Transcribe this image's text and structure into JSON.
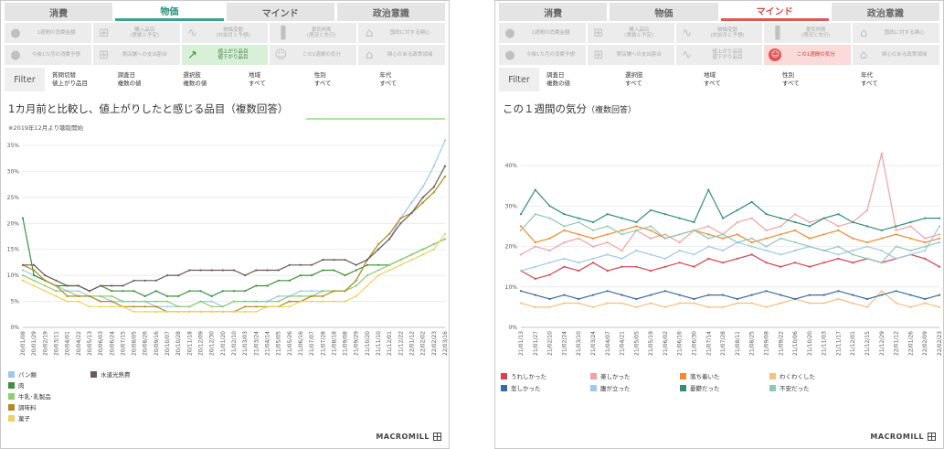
{
  "left": {
    "tabs": [
      "消費",
      "物価",
      "マインド",
      "政治意識"
    ],
    "active_tab": 1,
    "subtabs": [
      {
        "label": "1週間の消費金額",
        "icon": "money-bag-icon"
      },
      {
        "label": "購入品目\n(実績と予定)",
        "icon": "cart-icon"
      },
      {
        "label": "物価変動\n(対前月と予想)",
        "icon": "trend-icon"
      },
      {
        "label": "景気判断\n(現況と先行)",
        "icon": "bar-chart-icon"
      },
      {
        "label": "国政に対する関心",
        "icon": "parliament-icon"
      },
      {
        "label": "今後1カ月の消費予想",
        "icon": "money-bag-icon"
      },
      {
        "label": "実店舗への支出割合",
        "icon": "cart-icon"
      },
      {
        "label": "値上がり品目\n値下がり品目",
        "icon": "trend-up-icon"
      },
      {
        "label": "この1週間の気分",
        "icon": "smile-icon"
      },
      {
        "label": "関心のある政策領域",
        "icon": "parliament-icon"
      }
    ],
    "active_subtab": 7,
    "filter_label": "Filter",
    "filters": [
      {
        "label": "質問切替",
        "value": "値上がり品目"
      },
      {
        "label": "調査日",
        "value": "複数の値"
      },
      {
        "label": "選択肢",
        "value": "複数の値"
      },
      {
        "label": "地域",
        "value": "すべて"
      },
      {
        "label": "性別",
        "value": "すべて"
      },
      {
        "label": "年代",
        "value": "すべて"
      }
    ],
    "note": "※2019年12月より聴取開始",
    "logo": "MACROMILL"
  },
  "right": {
    "tabs": [
      "消費",
      "物価",
      "マインド",
      "政治意識"
    ],
    "active_tab": 2,
    "subtabs": [
      {
        "label": "1週間の消費金額",
        "icon": "money-bag-icon"
      },
      {
        "label": "購入品目\n(実績と予定)",
        "icon": "cart-icon"
      },
      {
        "label": "物価変動\n(対前月と予想)",
        "icon": "trend-icon"
      },
      {
        "label": "景気判断\n(現況と先行)",
        "icon": "bar-chart-icon"
      },
      {
        "label": "国政に対する関心",
        "icon": "parliament-icon"
      },
      {
        "label": "今後1カ月の消費予想",
        "icon": "money-bag-icon"
      },
      {
        "label": "実店舗への支出割合",
        "icon": "cart-icon"
      },
      {
        "label": "値上がり品目\n値下がり品目",
        "icon": "trend-icon"
      },
      {
        "label": "この1週間の気分",
        "icon": "smile-icon"
      },
      {
        "label": "関心のある政策領域",
        "icon": "parliament-icon"
      }
    ],
    "active_subtab": 8,
    "filter_label": "Filter",
    "filters": [
      {
        "label": "調査日",
        "value": "複数の値"
      },
      {
        "label": "選択肢",
        "value": "すべて"
      },
      {
        "label": "地域",
        "value": "すべて"
      },
      {
        "label": "性別",
        "value": "すべて"
      },
      {
        "label": "年代",
        "value": "すべて"
      }
    ],
    "logo": "MACROMILL"
  },
  "chart_data": [
    {
      "type": "line",
      "title": "1カ月前と比較し、値上がりしたと感じる品目（複数回答）",
      "ylim": [
        0,
        35
      ],
      "yticks": [
        0,
        5,
        10,
        15,
        20,
        25,
        30,
        35
      ],
      "y_unit": "%",
      "x_tick_labels": [
        "20/01/08",
        "20/01/29",
        "20/02/19",
        "20/03/11",
        "20/04/01",
        "20/04/22",
        "20/05/13",
        "20/06/03",
        "20/06/24",
        "20/07/15",
        "20/08/05",
        "20/08/26",
        "20/09/16",
        "20/10/07",
        "20/10/28",
        "20/11/18",
        "20/12/09",
        "20/12/30",
        "21/01/20",
        "21/02/10",
        "21/03/03",
        "21/03/24",
        "21/04/14",
        "21/05/05",
        "21/05/26",
        "21/06/16",
        "21/07/07",
        "21/07/28",
        "21/08/18",
        "21/09/08",
        "21/09/29",
        "21/10/20",
        "21/11/10",
        "21/12/01",
        "21/12/22",
        "22/01/12",
        "22/02/02",
        "22/02/23",
        "22/03/16"
      ],
      "legend_position": "bottom-left",
      "grid": true,
      "series": [
        {
          "name": "パン類",
          "color": "#9dc8e8",
          "values": [
            11,
            10,
            9,
            8,
            7,
            7,
            6,
            6,
            5,
            5,
            5,
            5,
            4,
            4,
            4,
            4,
            5,
            5,
            4,
            5,
            5,
            5,
            5,
            6,
            6,
            7,
            7,
            7,
            7,
            7,
            9,
            13,
            15,
            17,
            21,
            24,
            27,
            31,
            36
          ]
        },
        {
          "name": "肉",
          "color": "#3f8f3f",
          "values": [
            21,
            10,
            9,
            8,
            8,
            8,
            7,
            8,
            7,
            7,
            7,
            6,
            7,
            6,
            6,
            7,
            7,
            6,
            7,
            7,
            7,
            8,
            8,
            9,
            9,
            10,
            10,
            11,
            11,
            10,
            11,
            12,
            12,
            12,
            13,
            14,
            15,
            16,
            17
          ]
        },
        {
          "name": "牛乳･乳製品",
          "color": "#8fcc70",
          "values": [
            10,
            9,
            8,
            7,
            7,
            6,
            6,
            6,
            6,
            5,
            5,
            5,
            5,
            5,
            4,
            4,
            5,
            4,
            4,
            5,
            5,
            5,
            5,
            5,
            6,
            6,
            6,
            7,
            7,
            7,
            8,
            10,
            11,
            12,
            13,
            14,
            15,
            16,
            17
          ]
        },
        {
          "name": "調味料",
          "color": "#b38a1a",
          "values": [
            12,
            11,
            9,
            8,
            6,
            6,
            6,
            5,
            5,
            4,
            4,
            4,
            4,
            3,
            3,
            3,
            3,
            3,
            3,
            3,
            4,
            4,
            4,
            4,
            5,
            5,
            6,
            6,
            7,
            7,
            9,
            13,
            16,
            18,
            21,
            22,
            24,
            26,
            29
          ]
        },
        {
          "name": "菓子",
          "color": "#f0d060",
          "values": [
            9,
            8,
            7,
            6,
            5,
            5,
            4,
            4,
            4,
            4,
            3,
            3,
            3,
            3,
            3,
            3,
            3,
            3,
            3,
            3,
            3,
            3,
            4,
            4,
            4,
            5,
            5,
            5,
            5,
            5,
            6,
            8,
            10,
            11,
            12,
            13,
            14,
            15,
            18
          ]
        },
        {
          "name": "水道光熱費",
          "color": "#6a5a5a",
          "values": [
            12,
            12,
            10,
            9,
            8,
            8,
            7,
            8,
            8,
            8,
            9,
            9,
            9,
            10,
            10,
            11,
            11,
            11,
            11,
            11,
            10,
            11,
            11,
            11,
            12,
            12,
            12,
            13,
            13,
            13,
            12,
            13,
            15,
            17,
            20,
            22,
            25,
            27,
            31
          ]
        }
      ]
    },
    {
      "type": "line",
      "title": "この１週間の気分",
      "subtitle": "（複数回答）",
      "ylim": [
        0,
        45
      ],
      "yticks": [
        0,
        10,
        20,
        30,
        40
      ],
      "y_unit": "%",
      "x_tick_labels": [
        "21/01/13",
        "21/01/27",
        "21/02/10",
        "21/02/24",
        "21/03/10",
        "21/03/24",
        "21/04/07",
        "21/04/21",
        "21/05/05",
        "21/05/19",
        "21/06/02",
        "21/06/16",
        "21/06/30",
        "21/07/14",
        "21/07/28",
        "21/08/11",
        "21/08/25",
        "21/09/08",
        "21/09/22",
        "21/10/06",
        "21/10/20",
        "21/11/03",
        "21/11/17",
        "21/12/01",
        "21/12/15",
        "21/12/29",
        "22/01/12",
        "22/01/26",
        "22/02/09",
        "22/02/23"
      ],
      "legend_position": "bottom",
      "grid": true,
      "series": [
        {
          "name": "うれしかった",
          "color": "#d94050",
          "values": [
            14,
            12,
            13,
            15,
            14,
            16,
            14,
            15,
            15,
            14,
            15,
            16,
            15,
            17,
            16,
            17,
            18,
            16,
            15,
            16,
            15,
            16,
            17,
            16,
            17,
            16,
            17,
            18,
            17,
            15
          ]
        },
        {
          "name": "楽しかった",
          "color": "#f2a0a0",
          "values": [
            18,
            20,
            19,
            21,
            22,
            20,
            21,
            19,
            24,
            22,
            23,
            21,
            24,
            25,
            23,
            26,
            27,
            24,
            25,
            28,
            26,
            27,
            25,
            26,
            29,
            43,
            24,
            25,
            22,
            23
          ]
        },
        {
          "name": "落ち着いた",
          "color": "#f08a30",
          "values": [
            25,
            21,
            22,
            24,
            23,
            22,
            23,
            24,
            25,
            24,
            22,
            23,
            24,
            23,
            22,
            23,
            21,
            22,
            23,
            24,
            22,
            23,
            24,
            22,
            21,
            22,
            23,
            22,
            21,
            22
          ]
        },
        {
          "name": "わくわくした",
          "color": "#f5c080",
          "values": [
            6,
            5,
            5,
            6,
            6,
            5,
            6,
            6,
            5,
            6,
            5,
            6,
            6,
            5,
            5,
            6,
            6,
            5,
            6,
            7,
            6,
            6,
            7,
            6,
            5,
            9,
            6,
            5,
            6,
            5
          ]
        },
        {
          "name": "悲しかった",
          "color": "#3a6aa0",
          "values": [
            9,
            8,
            7,
            8,
            7,
            8,
            9,
            8,
            7,
            8,
            9,
            8,
            7,
            8,
            8,
            7,
            8,
            9,
            8,
            7,
            8,
            8,
            9,
            8,
            7,
            8,
            9,
            8,
            7,
            8
          ]
        },
        {
          "name": "腹が立った",
          "color": "#a0c8e8",
          "values": [
            14,
            15,
            16,
            17,
            16,
            17,
            18,
            17,
            19,
            18,
            17,
            19,
            18,
            20,
            19,
            21,
            20,
            19,
            18,
            19,
            20,
            19,
            18,
            19,
            20,
            19,
            17,
            18,
            19,
            25
          ]
        },
        {
          "name": "憂鬱だった",
          "color": "#2f8f7a",
          "values": [
            28,
            34,
            30,
            28,
            27,
            26,
            28,
            27,
            26,
            29,
            28,
            27,
            26,
            34,
            27,
            29,
            31,
            28,
            27,
            26,
            25,
            27,
            28,
            26,
            25,
            24,
            25,
            26,
            27,
            27
          ]
        },
        {
          "name": "不安だった",
          "color": "#90c8b8",
          "values": [
            24,
            28,
            27,
            25,
            26,
            24,
            25,
            23,
            24,
            25,
            22,
            23,
            24,
            22,
            23,
            21,
            22,
            20,
            22,
            21,
            20,
            19,
            20,
            18,
            17,
            16,
            20,
            19,
            20,
            21
          ]
        }
      ]
    }
  ]
}
